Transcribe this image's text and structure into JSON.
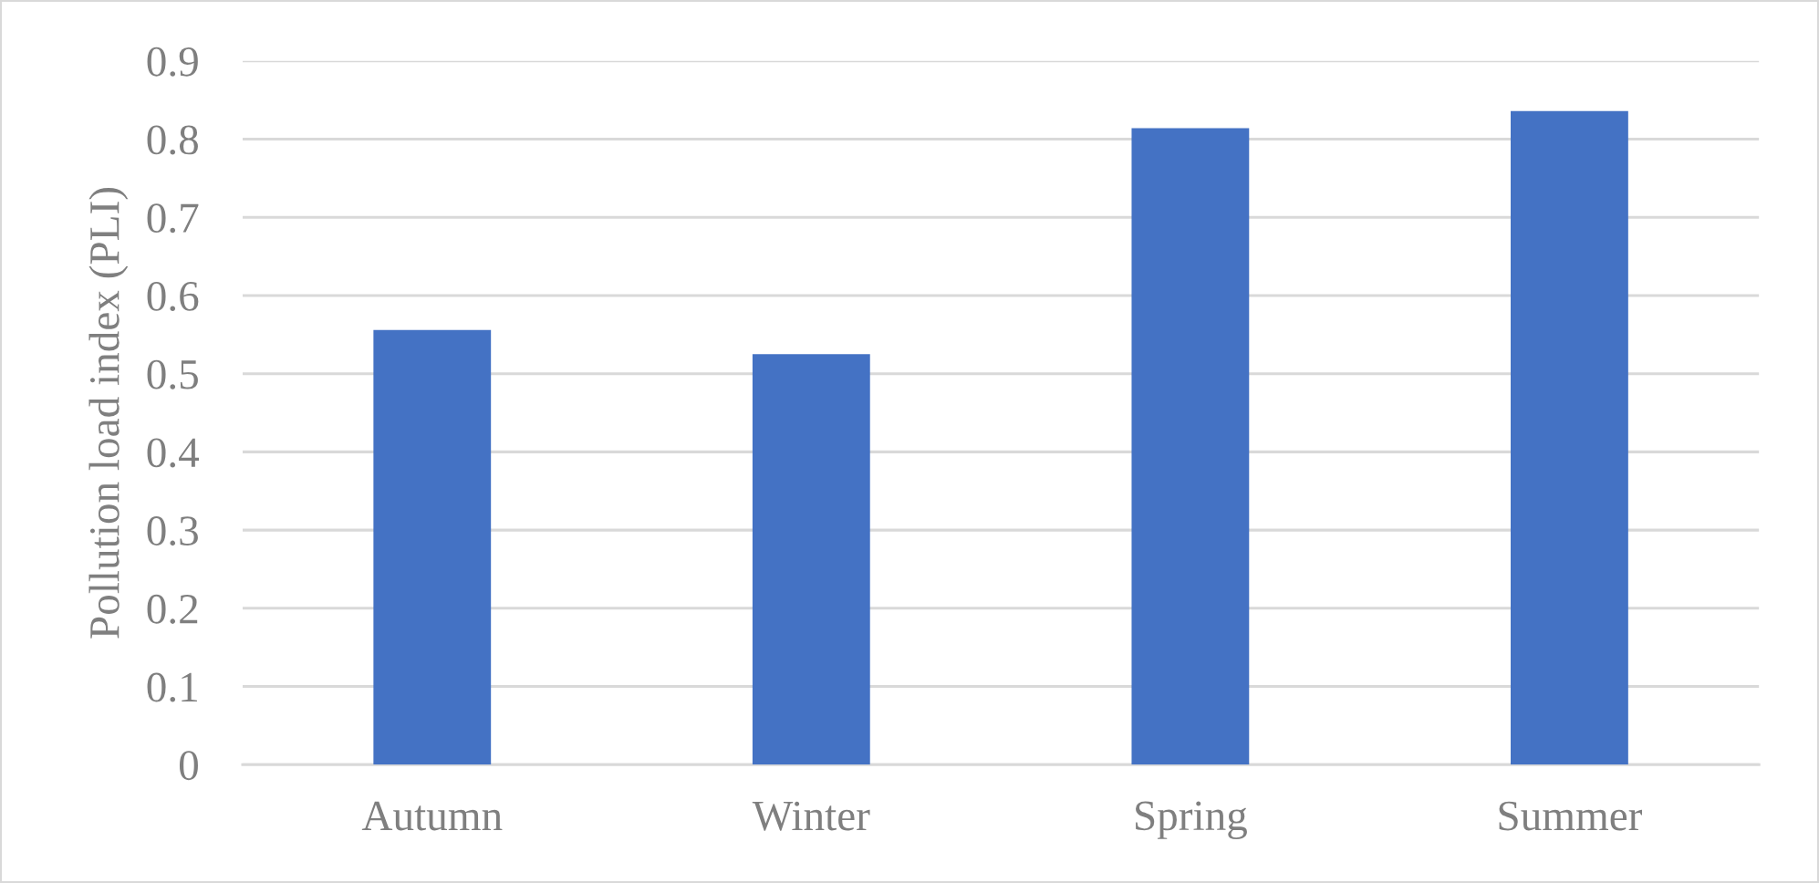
{
  "chart_data": {
    "type": "bar",
    "ylabel": "Pollution load index (PLI)",
    "categories": [
      "Autumn",
      "Winter",
      "Spring",
      "Summer"
    ],
    "values": [
      0.556,
      0.525,
      0.814,
      0.836
    ],
    "color": "#4472c4",
    "ylim": [
      0,
      0.9
    ],
    "yticks": [
      0,
      0.1,
      0.2,
      0.3,
      0.4,
      0.5,
      0.6,
      0.7,
      0.8,
      0.9
    ],
    "grid": "y"
  }
}
